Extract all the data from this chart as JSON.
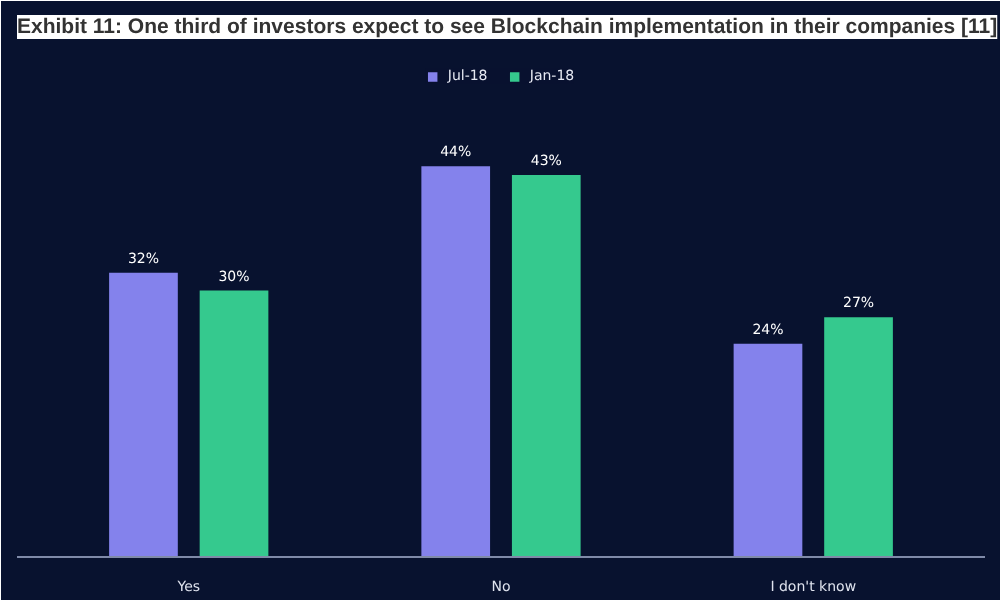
{
  "chart_data": {
    "type": "bar",
    "title": "Exhibit 11: One third of investors expect to see Blockchain implementation in their companies [11]",
    "categories": [
      "Yes",
      "No",
      "I don't know"
    ],
    "series": [
      {
        "name": "Jul-18",
        "color": "#8482ec",
        "values": [
          32,
          44,
          24
        ],
        "value_labels": [
          "32%",
          "44%",
          "24%"
        ]
      },
      {
        "name": "Jan-18",
        "color": "#35c98e",
        "values": [
          30,
          43,
          27
        ],
        "value_labels": [
          "30%",
          "43%",
          "27%"
        ]
      }
    ],
    "legend": "top"
  }
}
